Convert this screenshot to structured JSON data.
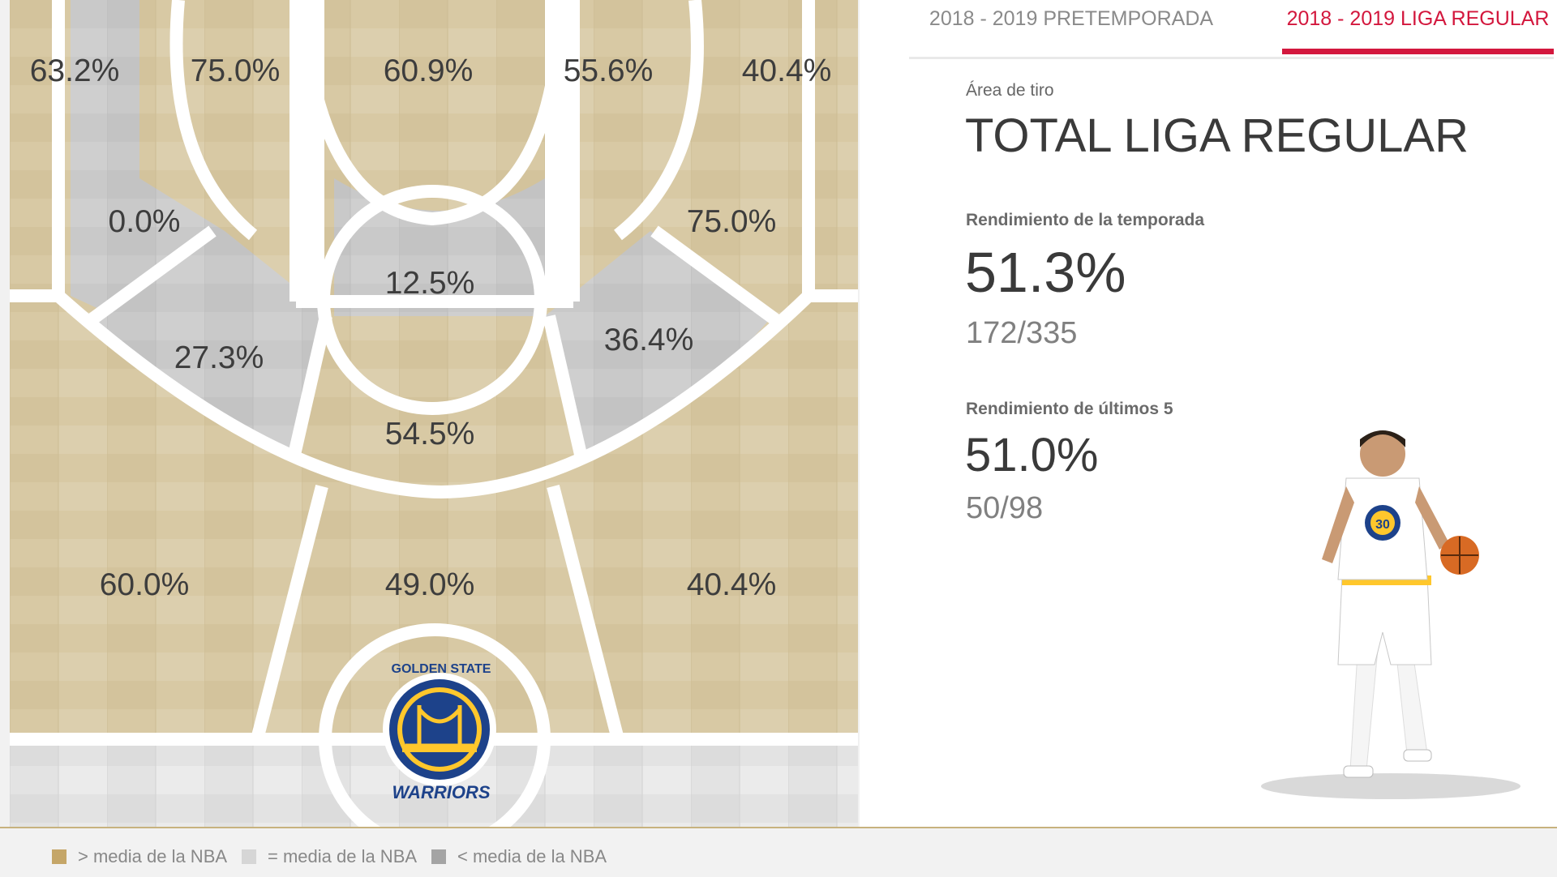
{
  "tabs": {
    "preseason": "2018 - 2019 PRETEMPORADA",
    "regular": "2018 - 2019 LIGA REGULAR"
  },
  "panel": {
    "area_label": "Área de tiro",
    "area_title": "TOTAL LIGA REGULAR",
    "season_label": "Rendimiento de la temporada",
    "season_pct": "51.3%",
    "season_ratio": "172/335",
    "last5_label": "Rendimiento de últimos 5",
    "last5_pct": "51.0%",
    "last5_ratio": "50/98"
  },
  "court": {
    "logo_top": "GOLDEN STATE",
    "logo_bottom": "WARRIORS",
    "zones": {
      "corner_left": "63.2%",
      "wing_left_outer": "75.0%",
      "top_center": "60.9%",
      "wing_right_inner": "55.6%",
      "corner_right": "40.4%",
      "left_elbow": "0.0%",
      "right_elbow": "75.0%",
      "free_throw": "12.5%",
      "left_mid_low": "27.3%",
      "right_mid_low": "36.4%",
      "paint_top": "54.5%",
      "left_base": "60.0%",
      "restricted": "49.0%",
      "right_base": "40.4%"
    }
  },
  "legend": {
    "above": "> media de la NBA",
    "equal": "= media de la NBA",
    "below": "< media de la NBA"
  },
  "colors": {
    "above": "#c5a668",
    "equal": "#d6d6d6",
    "below": "#a4a4a4",
    "accent": "#d3173d",
    "wood": "#d8c9a4",
    "wood_gray": "#c8c8c8"
  }
}
